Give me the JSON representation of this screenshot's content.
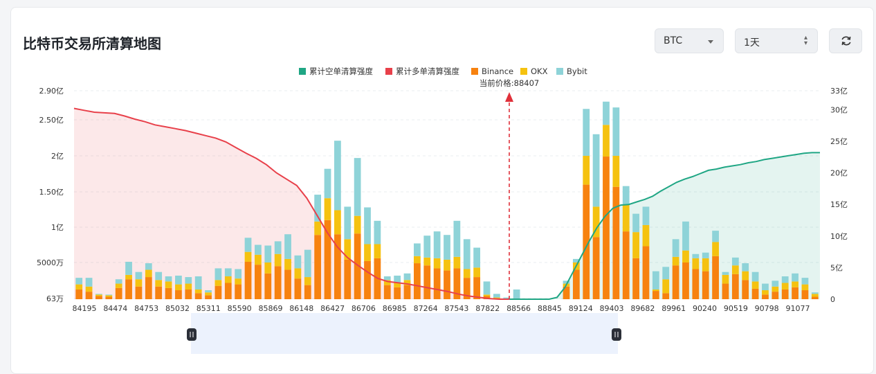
{
  "header": {
    "title": "比特币交易所清算地图",
    "coin_select": "BTC",
    "range_select": "1天",
    "refresh_icon": "refresh-icon"
  },
  "chart_data": {
    "type": "bar",
    "legend": [
      "累计空单清算强度",
      "累计多单清算强度",
      "Binance",
      "OKX",
      "Bybit"
    ],
    "legend_position": "top-center",
    "current_price_label": "当前价格:88407",
    "current_price": 88407,
    "colors": {
      "short_cum": "#1fa684",
      "long_cum": "#e8404a",
      "binance": "#f7820f",
      "okx": "#f5c210",
      "bybit": "#8ed3d8",
      "price_marker": "#e0303a"
    },
    "left_axis_ticks": [
      "2.90亿",
      "2.50亿",
      "2亿",
      "1.50亿",
      "1亿",
      "5000万",
      "63万"
    ],
    "right_axis_ticks": [
      "33亿",
      "30亿",
      "25亿",
      "20亿",
      "15亿",
      "10亿",
      "5亿",
      "0"
    ],
    "right_axis_range": [
      0,
      33
    ],
    "right_axis_unit": "亿",
    "x_tick_labels": [
      "84195",
      "84474",
      "84753",
      "85032",
      "85311",
      "85590",
      "85869",
      "86148",
      "86427",
      "86706",
      "86985",
      "87264",
      "87543",
      "87822",
      "88566",
      "88845",
      "89124",
      "89403",
      "89682",
      "89961",
      "90240",
      "90519",
      "90798",
      "91077"
    ],
    "bars_unit": "亿",
    "binance": [
      0.13,
      0.1,
      0.04,
      0.03,
      0.15,
      0.27,
      0.17,
      0.3,
      0.17,
      0.15,
      0.12,
      0.13,
      0.08,
      0.05,
      0.18,
      0.22,
      0.2,
      0.51,
      0.47,
      0.35,
      0.45,
      0.4,
      0.28,
      0.19,
      0.89,
      1.1,
      0.9,
      0.54,
      0.91,
      0.52,
      0.56,
      0.19,
      0.16,
      0.19,
      0.49,
      0.46,
      0.42,
      0.39,
      0.42,
      0.29,
      0.3,
      0.04,
      0.01,
      0,
      0,
      0,
      0,
      0,
      0,
      0.17,
      0.4,
      1.6,
      0.86,
      1.99,
      1.57,
      0.94,
      0.56,
      0.73,
      0.11,
      0.08,
      0.46,
      0.5,
      0.41,
      0.38,
      0.59,
      0.21,
      0.34,
      0.26,
      0.14,
      0.06,
      0.1,
      0.13,
      0.16,
      0.12,
      0.03
    ],
    "okx": [
      0.07,
      0.07,
      0.02,
      0.02,
      0.06,
      0.06,
      0.1,
      0.1,
      0.09,
      0.09,
      0.08,
      0.08,
      0.05,
      0.04,
      0.08,
      0.09,
      0.08,
      0.14,
      0.14,
      0.15,
      0.17,
      0.15,
      0.14,
      0.11,
      0.19,
      0.31,
      0.34,
      0.29,
      0.25,
      0.24,
      0.2,
      0.07,
      0.06,
      0.07,
      0.1,
      0.11,
      0.14,
      0.15,
      0.16,
      0.12,
      0.13,
      0.02,
      0.01,
      0,
      0,
      0,
      0,
      0,
      0,
      0.04,
      0.1,
      0.4,
      0.43,
      0.44,
      0.43,
      0.38,
      0.37,
      0.3,
      0.02,
      0.19,
      0.12,
      0.17,
      0.15,
      0.18,
      0.2,
      0.12,
      0.12,
      0.12,
      0.1,
      0.06,
      0.07,
      0.09,
      0.08,
      0.08,
      0.04
    ],
    "bybit": [
      0.09,
      0.12,
      0.01,
      0.01,
      0.06,
      0.18,
      0.1,
      0.09,
      0.11,
      0.07,
      0.12,
      0.09,
      0.18,
      0.03,
      0.16,
      0.11,
      0.13,
      0.2,
      0.14,
      0.24,
      0.18,
      0.35,
      0.18,
      0.38,
      0.38,
      0.41,
      0.97,
      0.46,
      0.81,
      0.52,
      0.33,
      0.05,
      0.1,
      0.09,
      0.18,
      0.31,
      0.38,
      0.35,
      0.51,
      0.42,
      0.28,
      0.18,
      0.05,
      0.02,
      0.13,
      0,
      0,
      0,
      0,
      0.04,
      0.05,
      0.65,
      1.01,
      0.32,
      0.67,
      0.26,
      0.26,
      0.26,
      0.25,
      0.17,
      0.25,
      0.41,
      0.06,
      0.08,
      0.16,
      0.04,
      0.11,
      0.11,
      0.13,
      0.09,
      0.08,
      0.09,
      0.11,
      0.09,
      0.02
    ],
    "long_cum": [
      30.2,
      29.9,
      29.6,
      29.5,
      29.4,
      29.0,
      28.5,
      28.1,
      27.6,
      27.3,
      27.0,
      26.7,
      26.3,
      25.9,
      25.5,
      24.9,
      24.0,
      23.1,
      22.3,
      21.3,
      20.0,
      19.0,
      18.0,
      16.0,
      13.3,
      10.6,
      8.3,
      6.6,
      5.4,
      4.3,
      3.3,
      2.8,
      2.6,
      2.4,
      2.1,
      1.8,
      1.5,
      1.2,
      0.8,
      0.5,
      0.3,
      0.1,
      0,
      0
    ],
    "short_cum": [
      0,
      0,
      0,
      0,
      0,
      0,
      0.3,
      1.9,
      4.3,
      6.7,
      9.1,
      11.3,
      13.1,
      14.4,
      14.9,
      15.0,
      15.4,
      15.8,
      16.3,
      17.1,
      17.8,
      18.5,
      19.0,
      19.4,
      19.9,
      20.4,
      20.6,
      20.9,
      21.1,
      21.3,
      21.6,
      21.8,
      22.1,
      22.3,
      22.5,
      22.7,
      22.9,
      23.1,
      23.2,
      23.2
    ]
  }
}
